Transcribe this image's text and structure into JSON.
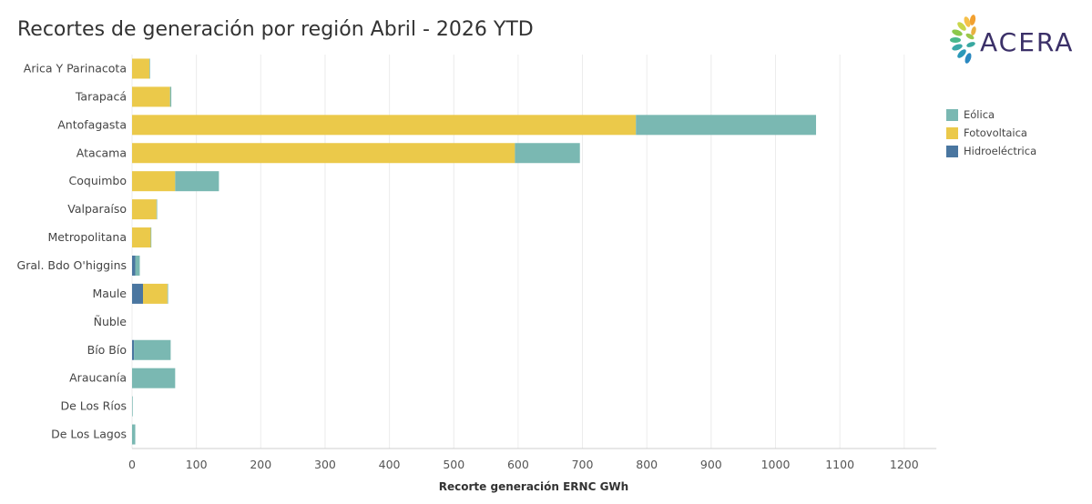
{
  "title": "Recortes de generación por región Abril - 2026 YTD",
  "logo": {
    "text": "ACERA"
  },
  "legend": [
    {
      "name": "Eólica",
      "color": "#7ab8b2"
    },
    {
      "name": "Fotovoltaica",
      "color": "#ebc94a"
    },
    {
      "name": "Hidroeléctrica",
      "color": "#4a76a0"
    }
  ],
  "chart_data": {
    "type": "bar",
    "orientation": "horizontal",
    "stacked": true,
    "title": "Recortes de generación por región Abril - 2026 YTD",
    "xlabel": "Recorte generación ERNC GWh",
    "ylabel": "",
    "xlim": [
      0,
      1250
    ],
    "xticks": [
      0,
      100,
      200,
      300,
      400,
      500,
      600,
      700,
      800,
      900,
      1000,
      1100,
      1200
    ],
    "grid": true,
    "legend_position": "right",
    "categories": [
      "Arica Y Parinacota",
      "Tarapacá",
      "Antofagasta",
      "Atacama",
      "Coquimbo",
      "Valparaíso",
      "Metropolitana",
      "Gral. Bdo O'higgins",
      "Maule",
      "Ñuble",
      "Bío Bío",
      "Araucanía",
      "De Los Ríos",
      "De Los Lagos"
    ],
    "series": [
      {
        "name": "Hidroeléctrica",
        "color": "#4a76a0",
        "values": [
          0,
          0,
          0,
          0,
          0,
          0,
          0,
          5,
          17,
          0,
          3,
          0,
          0,
          0
        ]
      },
      {
        "name": "Fotovoltaica",
        "color": "#ebc94a",
        "values": [
          27,
          59,
          783,
          595,
          67,
          38,
          29,
          0,
          38,
          0,
          0,
          0,
          0,
          0
        ]
      },
      {
        "name": "Eólica",
        "color": "#7ab8b2",
        "values": [
          1,
          2,
          280,
          101,
          68,
          1,
          1,
          7,
          1,
          0,
          57,
          67,
          1,
          5
        ]
      }
    ]
  }
}
